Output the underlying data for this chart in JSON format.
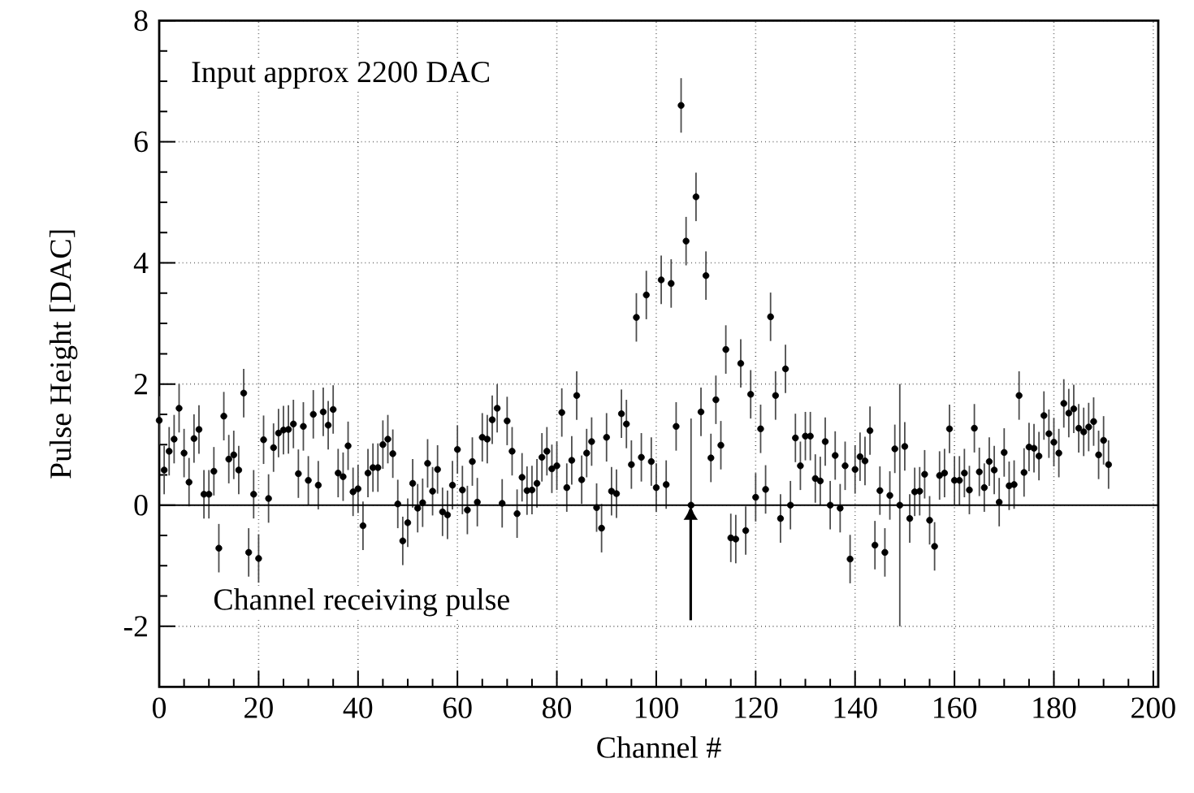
{
  "chart_data": {
    "type": "scatter",
    "xlabel": "Channel #",
    "ylabel": "Pulse Height  [DAC]",
    "annotations": [
      "Input approx 2200 DAC",
      "Channel receiving pulse"
    ],
    "xlim": [
      0,
      201
    ],
    "ylim": [
      -3,
      8
    ],
    "xticks": [
      0,
      20,
      40,
      60,
      80,
      100,
      120,
      140,
      160,
      180,
      200
    ],
    "yticks": [
      -2,
      0,
      2,
      4,
      6,
      8
    ],
    "grid": true,
    "marker": "circle",
    "color": "#000000",
    "ref_lines": [
      {
        "axis": "y",
        "value": 0
      }
    ],
    "x": [
      0,
      1,
      2,
      3,
      4,
      5,
      6,
      7,
      8,
      9,
      10,
      11,
      12,
      13,
      14,
      15,
      16,
      17,
      18,
      19,
      20,
      21,
      22,
      23,
      24,
      25,
      26,
      27,
      28,
      29,
      30,
      31,
      32,
      33,
      34,
      35,
      36,
      37,
      38,
      39,
      40,
      41,
      42,
      43,
      44,
      45,
      46,
      47,
      48,
      49,
      50,
      51,
      52,
      53,
      54,
      55,
      56,
      57,
      58,
      59,
      60,
      61,
      62,
      63,
      64,
      65,
      66,
      67,
      68,
      69,
      70,
      71,
      72,
      73,
      74,
      75,
      76,
      77,
      78,
      79,
      80,
      81,
      82,
      83,
      84,
      85,
      86,
      87,
      88,
      89,
      90,
      91,
      92,
      93,
      94,
      95,
      96,
      97,
      98,
      99,
      100,
      101,
      102,
      103,
      104,
      105,
      106,
      107,
      108,
      109,
      110,
      111,
      112,
      113,
      114,
      115,
      116,
      117,
      118,
      119,
      120,
      121,
      122,
      123,
      124,
      125,
      126,
      127,
      128,
      129,
      130,
      131,
      132,
      133,
      134,
      135,
      136,
      137,
      138,
      139,
      140,
      141,
      142,
      143,
      144,
      145,
      146,
      147,
      148,
      149,
      150,
      151,
      152,
      153,
      154,
      155,
      156,
      157,
      158,
      159,
      160,
      161,
      162,
      163,
      164,
      165,
      166,
      167,
      168,
      169,
      170,
      171,
      172,
      173,
      174,
      175,
      176,
      177,
      178,
      179,
      180,
      181,
      182,
      183,
      184,
      185,
      186,
      187,
      188,
      189,
      190,
      191
    ],
    "values": [
      1.4,
      0.58,
      0.89,
      1.09,
      1.6,
      0.86,
      0.38,
      1.1,
      1.25,
      0.18,
      0.18,
      0.56,
      -0.71,
      1.47,
      0.76,
      0.83,
      0.58,
      1.85,
      -0.78,
      0.18,
      -0.88,
      1.08,
      0.11,
      0.95,
      1.19,
      1.24,
      1.25,
      1.34,
      0.52,
      1.3,
      0.41,
      1.5,
      0.33,
      1.54,
      1.32,
      1.58,
      0.53,
      0.47,
      0.98,
      0.22,
      0.27,
      -0.34,
      0.53,
      0.62,
      0.62,
      1.0,
      1.09,
      0.85,
      0.02,
      -0.59,
      -0.29,
      0.36,
      -0.05,
      0.04,
      0.69,
      0.23,
      0.59,
      -0.11,
      -0.16,
      0.33,
      0.92,
      0.25,
      -0.08,
      0.72,
      0.05,
      1.12,
      1.09,
      1.41,
      1.6,
      0.03,
      1.39,
      0.89,
      -0.14,
      0.46,
      0.24,
      0.25,
      0.36,
      0.79,
      0.89,
      0.6,
      0.65,
      1.53,
      0.29,
      0.74,
      1.81,
      0.42,
      0.86,
      1.05,
      -0.04,
      -0.38,
      1.12,
      0.23,
      0.19,
      1.51,
      1.34,
      0.67,
      3.1,
      0.79,
      3.47,
      0.72,
      0.29,
      3.72,
      0.34,
      3.66,
      1.3,
      6.6,
      4.36,
      0.0,
      5.09,
      1.54,
      3.79,
      0.78,
      1.74,
      0.99,
      2.57,
      -0.54,
      -0.56,
      2.34,
      -0.42,
      1.83,
      0.13,
      1.26,
      0.26,
      3.11,
      1.81,
      -0.22,
      2.25,
      0.0,
      1.11,
      0.65,
      1.14,
      1.14,
      0.44,
      0.4,
      1.05,
      0.0,
      0.82,
      -0.05,
      0.65,
      -0.89,
      0.59,
      0.8,
      0.73,
      1.23,
      -0.66,
      0.24,
      -0.78,
      0.16,
      0.93,
      0.0,
      0.97,
      -0.22,
      0.22,
      0.23,
      0.51,
      -0.25,
      -0.68,
      0.49,
      0.53,
      1.26,
      0.41,
      0.41,
      0.53,
      0.25,
      1.27,
      0.55,
      0.29,
      0.72,
      0.58,
      0.05,
      0.87,
      0.32,
      0.34,
      1.81,
      0.54,
      0.96,
      0.94,
      0.81,
      1.48,
      1.18,
      1.04,
      0.86,
      1.68,
      1.52,
      1.59,
      1.27,
      1.21,
      1.29,
      1.38,
      0.83,
      1.07,
      0.67
    ],
    "errors": [
      0.4,
      0.4,
      0.4,
      0.4,
      0.4,
      0.4,
      0.4,
      0.4,
      0.4,
      0.4,
      0.4,
      0.4,
      0.4,
      0.4,
      0.4,
      0.4,
      0.4,
      0.4,
      0.4,
      0.4,
      0.4,
      0.4,
      0.4,
      0.4,
      0.4,
      0.4,
      0.4,
      0.4,
      0.4,
      0.4,
      0.4,
      0.4,
      0.4,
      0.4,
      0.4,
      0.4,
      0.4,
      0.4,
      0.4,
      0.4,
      0.4,
      0.4,
      0.4,
      0.4,
      0.4,
      0.4,
      0.4,
      0.4,
      0.4,
      0.4,
      0.4,
      0.4,
      0.4,
      0.4,
      0.4,
      0.4,
      0.4,
      0.4,
      0.4,
      0.4,
      0.4,
      0.4,
      0.4,
      0.4,
      0.4,
      0.4,
      0.4,
      0.4,
      0.4,
      0.4,
      0.4,
      0.4,
      0.4,
      0.4,
      0.4,
      0.4,
      0.4,
      0.4,
      0.4,
      0.4,
      0.4,
      0.4,
      0.4,
      0.4,
      0.4,
      0.4,
      0.4,
      0.4,
      0.4,
      0.4,
      0.4,
      0.4,
      0.4,
      0.4,
      0.4,
      0.4,
      0.4,
      0.4,
      0.4,
      0.4,
      0.4,
      0.4,
      0.4,
      0.4,
      0.4,
      0.45,
      0.4,
      [
        0,
        1.43
      ],
      0.4,
      0.4,
      0.4,
      0.4,
      0.4,
      0.4,
      0.4,
      0.4,
      0.4,
      0.4,
      0.4,
      0.4,
      0.4,
      0.4,
      0.4,
      0.4,
      0.4,
      0.4,
      0.4,
      0.4,
      0.4,
      0.4,
      0.4,
      0.4,
      0.4,
      0.4,
      0.4,
      0.4,
      0.4,
      0.4,
      0.4,
      0.4,
      0.4,
      0.4,
      0.4,
      0.4,
      0.4,
      0.4,
      0.4,
      0.4,
      0.4,
      2,
      0.4,
      0.4,
      0.4,
      0.4,
      0.4,
      0.4,
      0.4,
      0.4,
      0.4,
      0.4,
      0.4,
      0.4,
      0.4,
      0.4,
      0.4,
      0.4,
      0.4,
      0.4,
      0.4,
      0.4,
      0.4,
      0.4,
      0.4,
      0.4,
      0.4,
      0.4,
      0.4,
      0.4,
      0.4,
      0.4,
      0.4,
      0.4,
      0.4,
      0.4,
      0.4,
      0.4,
      0.4,
      0.4,
      0.4,
      0.4,
      0.4,
      0.4
    ]
  }
}
